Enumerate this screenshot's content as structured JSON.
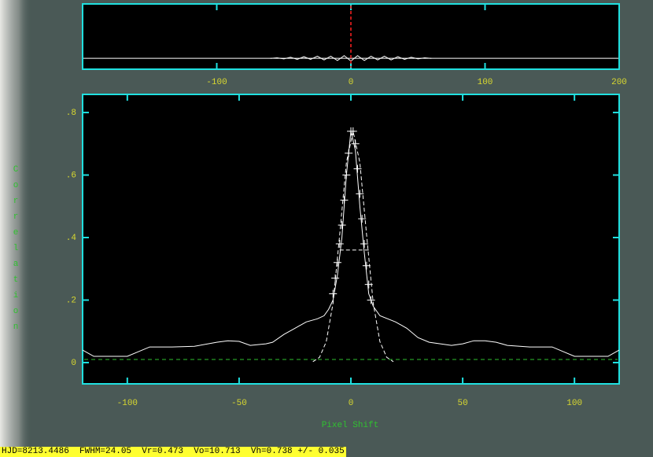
{
  "chart_data": [
    {
      "type": "line",
      "color": "#ffffff",
      "marker_color": "#ff2020",
      "marker_x": 0,
      "x": [
        -60,
        -55,
        -50,
        -45,
        -40,
        -35,
        -30,
        -25,
        -20,
        -15,
        -10,
        -5,
        0,
        5,
        10,
        15,
        20,
        25,
        30,
        35,
        40,
        45,
        50,
        55,
        60
      ],
      "values": [
        0,
        0.01,
        -0.01,
        0.02,
        -0.02,
        0.03,
        -0.02,
        0.04,
        -0.03,
        0.04,
        -0.04,
        0.05,
        -0.05,
        0.05,
        -0.04,
        0.04,
        -0.03,
        0.04,
        -0.03,
        0.03,
        -0.02,
        0.02,
        -0.01,
        0.01,
        0
      ],
      "xlim": [
        -200,
        200
      ],
      "xticks": [
        -100,
        0,
        100,
        200
      ],
      "ylim": [
        -0.2,
        1
      ]
    },
    {
      "type": "line",
      "x_label": "Pixel Shift",
      "y_label": "Correlation",
      "xlim": [
        -120,
        120
      ],
      "ylim": [
        -0.068,
        0.858
      ],
      "xticks": [
        -100,
        -50,
        0,
        50,
        100
      ],
      "yticks": [
        0,
        {
          "value": 0.2,
          "label": ".2"
        },
        {
          "value": 0.4,
          "label": ".4"
        },
        {
          "value": 0.6,
          "label": ".6"
        },
        {
          "value": 0.8,
          "label": ".8"
        }
      ],
      "baseline": 0.01,
      "baseline_color": "#30c030",
      "fwhm_level": 0.36,
      "fwhm_x": [
        -5,
        8
      ],
      "series": [
        {
          "color": "#ffffff",
          "style": "solid",
          "x": [
            -120,
            -115,
            -100,
            -95,
            -90,
            -80,
            -70,
            -60,
            -55,
            -50,
            -45,
            -38,
            -35,
            -30,
            -25,
            -20,
            -15,
            -12,
            -10,
            -8,
            -6,
            -4,
            -2,
            0,
            2,
            4,
            6,
            8,
            10,
            13,
            20,
            25,
            30,
            35,
            40,
            45,
            50,
            55,
            60,
            65,
            70,
            80,
            90,
            95,
            100,
            115,
            120
          ],
          "values": [
            0.04,
            0.02,
            0.02,
            0.035,
            0.05,
            0.05,
            0.052,
            0.065,
            0.07,
            0.068,
            0.055,
            0.06,
            0.065,
            0.09,
            0.11,
            0.13,
            0.14,
            0.15,
            0.17,
            0.2,
            0.28,
            0.4,
            0.6,
            0.74,
            0.68,
            0.5,
            0.35,
            0.22,
            0.18,
            0.15,
            0.13,
            0.11,
            0.08,
            0.065,
            0.06,
            0.055,
            0.06,
            0.07,
            0.07,
            0.065,
            0.055,
            0.05,
            0.05,
            0.035,
            0.02,
            0.02,
            0.04
          ]
        },
        {
          "color": "#ffffff",
          "style": "dashed",
          "x": [
            -17,
            -14,
            -11,
            -8,
            -5,
            -2,
            1,
            4,
            7,
            10,
            13,
            16,
            19
          ],
          "values": [
            0.003,
            0.017,
            0.067,
            0.19,
            0.41,
            0.64,
            0.74,
            0.64,
            0.41,
            0.19,
            0.067,
            0.017,
            0.003
          ]
        },
        {
          "color": "#ffffff",
          "style": "plus",
          "x": [
            -8,
            -7,
            -6,
            -5,
            -4,
            -3,
            -2,
            -1,
            0,
            1,
            2,
            3,
            4,
            5,
            6,
            7,
            8,
            9
          ],
          "values": [
            0.22,
            0.27,
            0.32,
            0.38,
            0.44,
            0.52,
            0.6,
            0.67,
            0.74,
            0.74,
            0.7,
            0.62,
            0.54,
            0.46,
            0.38,
            0.31,
            0.25,
            0.2
          ]
        }
      ]
    }
  ],
  "status_line": "HJD=8213.4486  FWHM=24.05  Vr=0.473  Vo=10.713  Vh=0.738 +/- 0.035"
}
